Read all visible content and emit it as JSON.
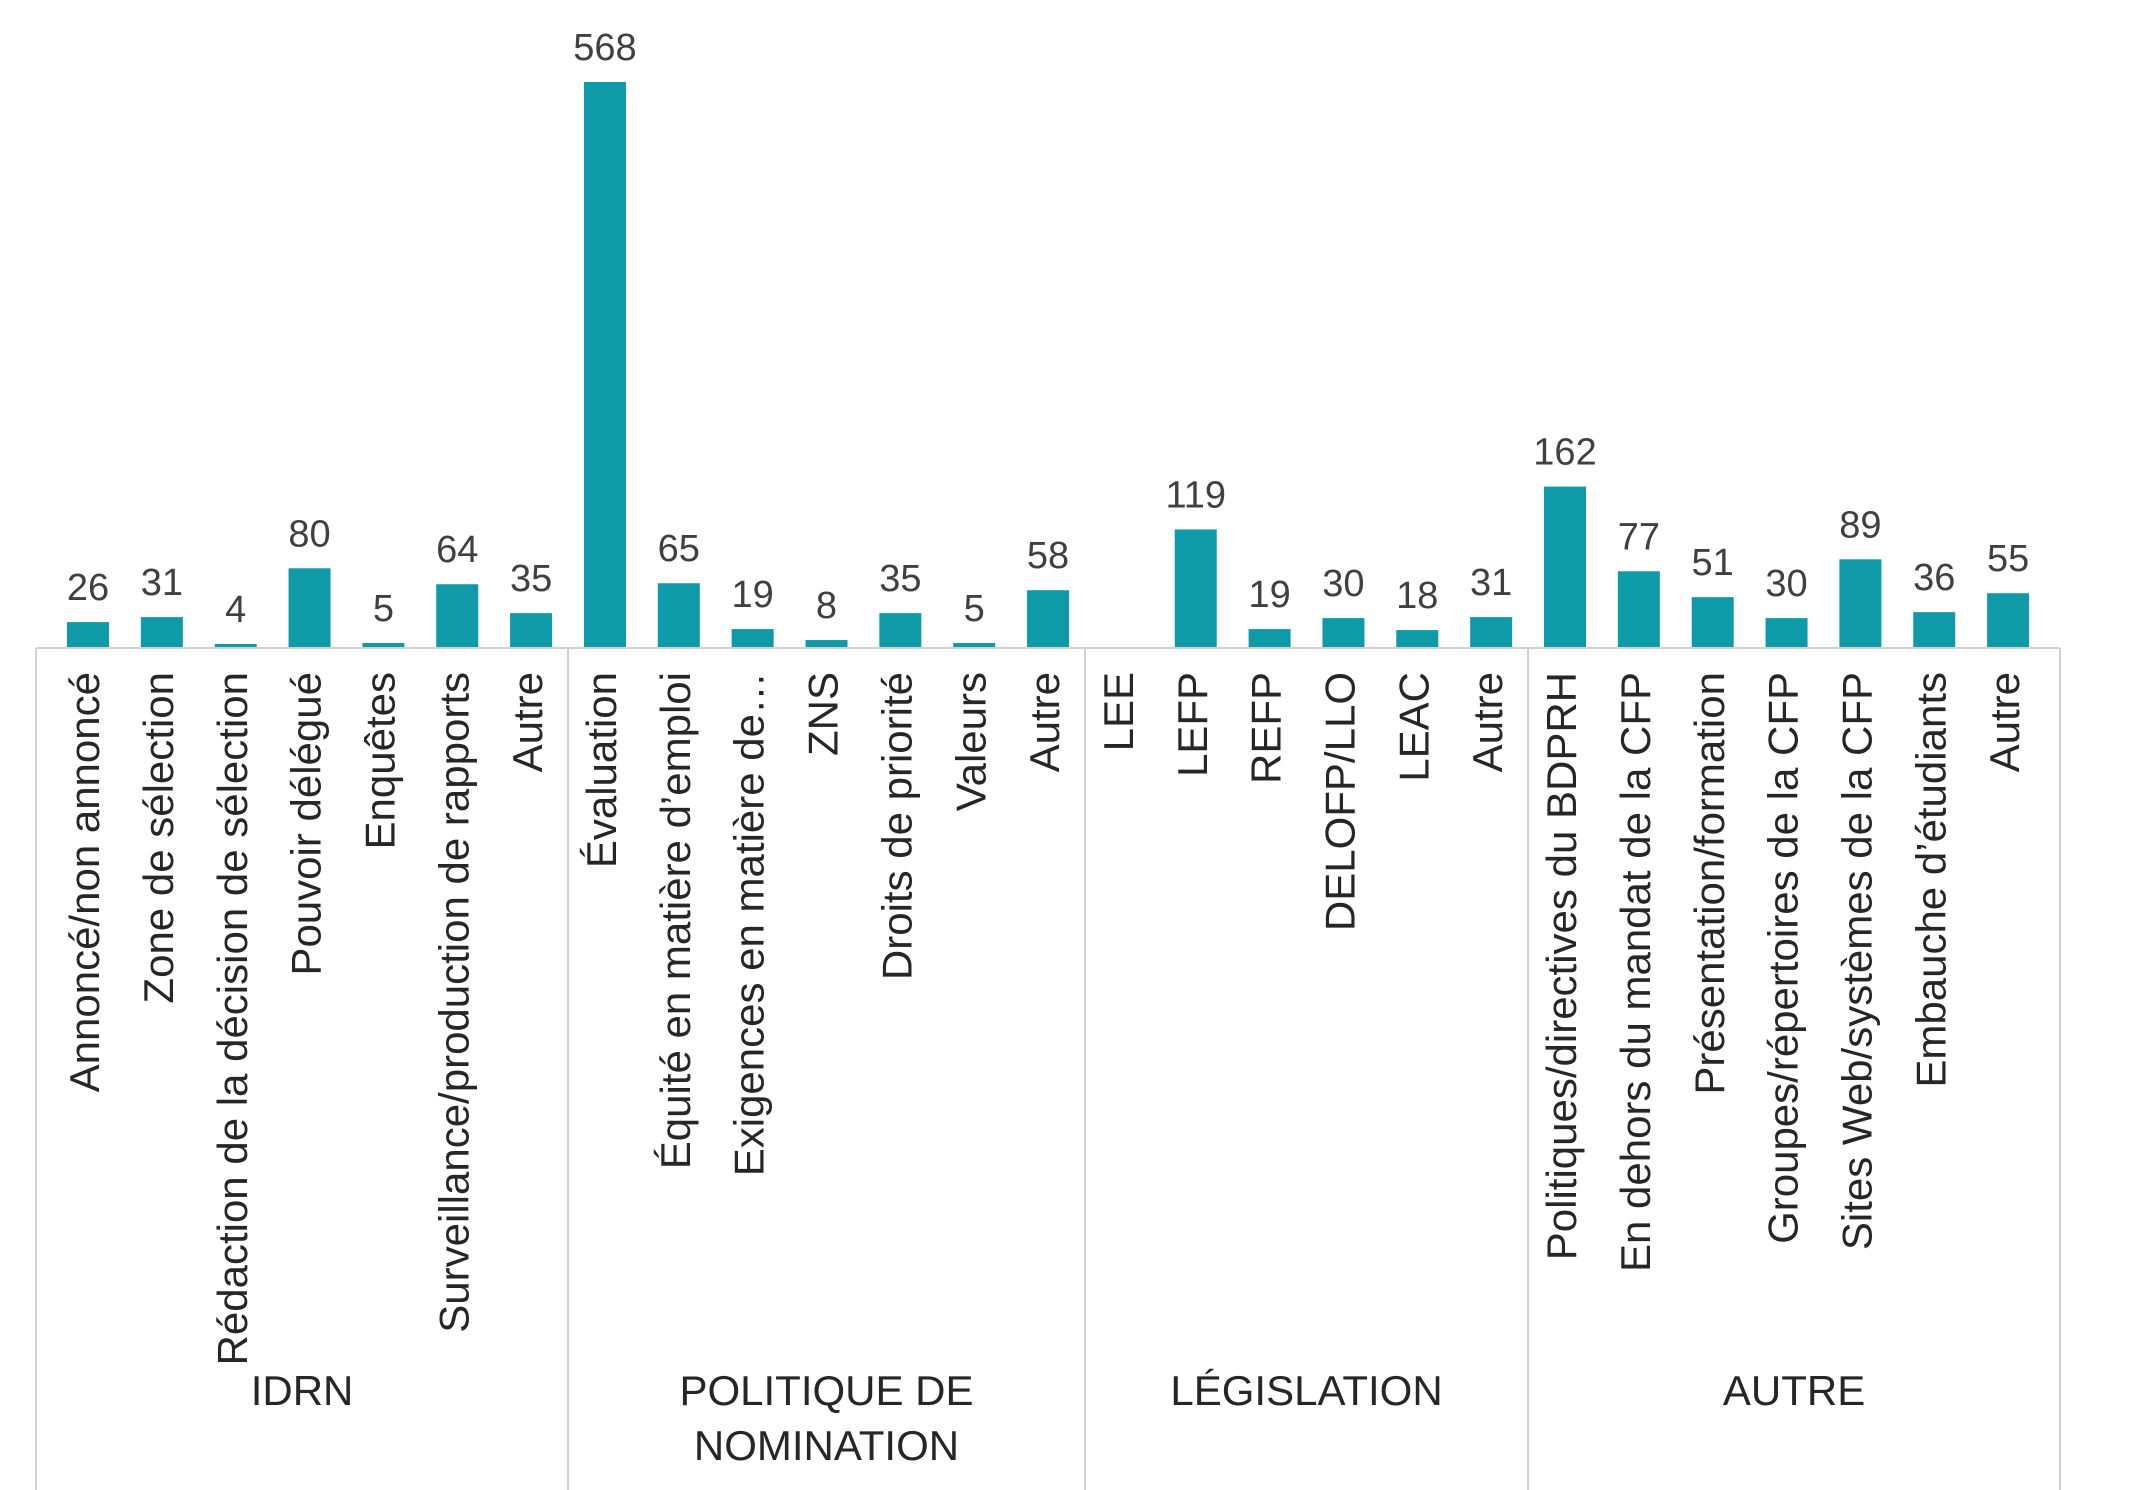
{
  "chart_data": {
    "type": "bar",
    "color": "#0f9aa8",
    "ylim": [
      0,
      568
    ],
    "groups": [
      {
        "name_lines": [
          "IDRN"
        ],
        "categories": [
          "Annoncé/non annoncé",
          "Zone de sélection",
          "Rédaction de la décision de sélection",
          "Pouvoir délégué",
          "Enquêtes",
          "Surveillance/production de rapports",
          "Autre"
        ],
        "values": [
          26,
          31,
          4,
          80,
          5,
          64,
          35
        ]
      },
      {
        "name_lines": [
          "POLITIQUE DE",
          "NOMINATION"
        ],
        "categories": [
          "Évaluation",
          "Équité en matière d’emploi",
          "Exigences en matière de…",
          "ZNS",
          "Droits de priorité",
          "Valeurs",
          "Autre"
        ],
        "values": [
          568,
          65,
          19,
          8,
          35,
          5,
          58
        ]
      },
      {
        "name_lines": [
          "LÉGISLATION"
        ],
        "categories": [
          "LEE",
          "LEFP",
          "REFP",
          "DELOFP/LLO",
          "LEAC",
          "Autre"
        ],
        "values": [
          null,
          119,
          19,
          30,
          18,
          31
        ]
      },
      {
        "name_lines": [
          "AUTRE"
        ],
        "categories": [
          "Politiques/directives du BDPRH",
          "En dehors du mandat de la CFP",
          "Présentation/formation",
          "Groupes/répertoires de la CFP",
          "Sites Web/systèmes de la CFP",
          "Embauche d’étudiants",
          "Autre"
        ],
        "values": [
          162,
          77,
          51,
          30,
          89,
          36,
          55
        ]
      }
    ]
  }
}
